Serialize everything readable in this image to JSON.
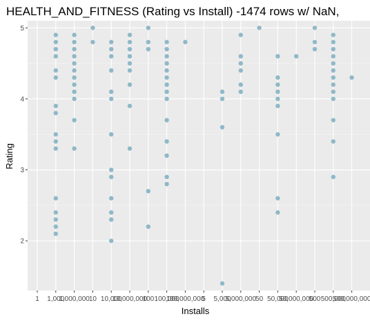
{
  "chart_data": {
    "type": "scatter",
    "title": "HEALTH_AND_FITNESS (Rating vs Install) -1474 rows w/ NaN,",
    "xlabel": "Installs",
    "ylabel": "Rating",
    "x_scale": "categorical",
    "categories": [
      "1",
      "1,000",
      "1,000,000",
      "10",
      "10,000",
      "10,000,000",
      "100",
      "100,000",
      "100,000,000",
      "5",
      "5,000",
      "5,000,000",
      "50",
      "50,000",
      "50,000,000",
      "500",
      "500,000",
      "500,000,000"
    ],
    "ylim": [
      1.3,
      5.1
    ],
    "yticks": [
      2,
      3,
      4,
      5
    ],
    "grid": true,
    "point_color": "#8fb8c8",
    "series": [
      {
        "category": "1,000",
        "values": [
          4.9,
          4.8,
          4.7,
          4.6,
          4.4,
          4.3,
          3.9,
          3.8,
          3.5,
          3.4,
          3.3,
          2.6,
          2.4,
          2.3,
          2.2,
          2.1
        ]
      },
      {
        "category": "1,000,000",
        "values": [
          4.9,
          4.8,
          4.7,
          4.6,
          4.5,
          4.4,
          4.3,
          4.2,
          4.1,
          4.0,
          3.7,
          3.3
        ]
      },
      {
        "category": "10",
        "values": [
          5.0,
          4.8
        ]
      },
      {
        "category": "10,000",
        "values": [
          4.8,
          4.7,
          4.6,
          4.4,
          4.1,
          4.0,
          3.5,
          3.0,
          2.9,
          2.6,
          2.4,
          2.3,
          2.0
        ]
      },
      {
        "category": "10,000,000",
        "values": [
          4.9,
          4.8,
          4.7,
          4.6,
          4.5,
          4.4,
          4.2,
          3.9,
          3.3
        ]
      },
      {
        "category": "100",
        "values": [
          5.0,
          4.8,
          4.7,
          2.7,
          2.2
        ]
      },
      {
        "category": "100,000",
        "values": [
          4.8,
          4.7,
          4.6,
          4.5,
          4.4,
          4.3,
          4.2,
          4.1,
          4.0,
          3.7,
          3.4,
          3.2,
          2.9,
          2.8
        ]
      },
      {
        "category": "100,000,000",
        "values": [
          4.8
        ]
      },
      {
        "category": "5,000",
        "values": [
          4.1,
          4.0,
          3.6,
          1.4
        ]
      },
      {
        "category": "5,000,000",
        "values": [
          4.9,
          4.6,
          4.5,
          4.4,
          4.2,
          4.1
        ]
      },
      {
        "category": "50",
        "values": [
          5.0
        ]
      },
      {
        "category": "50,000",
        "values": [
          4.6,
          4.3,
          4.2,
          4.1,
          4.0,
          3.9,
          3.5,
          2.6,
          2.4
        ]
      },
      {
        "category": "50,000,000",
        "values": [
          4.6
        ]
      },
      {
        "category": "500",
        "values": [
          5.0,
          4.8,
          4.7
        ]
      },
      {
        "category": "500,000",
        "values": [
          4.9,
          4.8,
          4.7,
          4.6,
          4.5,
          4.4,
          4.3,
          4.2,
          4.1,
          4.0,
          3.7,
          3.4,
          2.9
        ]
      },
      {
        "category": "500,000,000",
        "values": [
          4.3
        ]
      }
    ]
  }
}
